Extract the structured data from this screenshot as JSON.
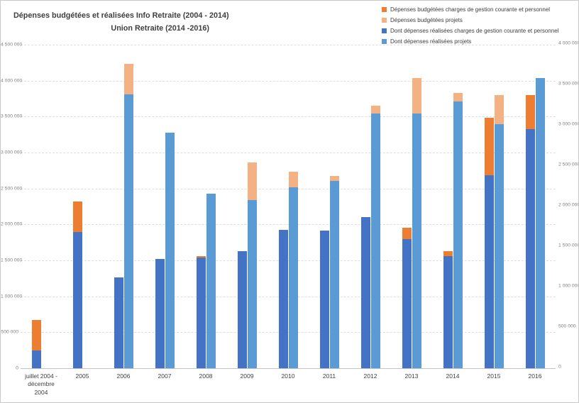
{
  "title": {
    "line1": "Dépenses budgétées et réalisées Info Retraite  (2004 - 2014)",
    "line2": "Union Retraite  (2014 -2016)"
  },
  "legend": {
    "position": "top-right",
    "items": [
      {
        "label": "Dépenses budgétées charges de gestion courante et personnel",
        "color": "#ED7D31"
      },
      {
        "label": "Dépenses budgétées  projets",
        "color": "#F4B183"
      },
      {
        "label": "Dont dépenses réalisées charges de gestion courante et personnel",
        "color": "#4472C4"
      },
      {
        "label": "Dont dépenses réalisées projets",
        "color": "#5B9BD5"
      }
    ]
  },
  "chart_data": {
    "type": "bar",
    "title": "Dépenses budgétées et réalisées Info Retraite (2004 - 2014) Union Retraite (2014 -2016)",
    "grid": "horizontal-dashed",
    "legend_position": "top-right",
    "dual_axis": true,
    "categories": [
      "juillet 2004 -\ndécembre 2004",
      "2005",
      "2006",
      "2007",
      "2008",
      "2009",
      "2010",
      "2011",
      "2012",
      "2013",
      "2014",
      "2015",
      "2016"
    ],
    "series": [
      {
        "name": "Dépenses budgétées charges de gestion courante et personnel",
        "color": "#ED7D31",
        "axis": "primary",
        "column": "charges",
        "layer": "back",
        "values": [
          670000,
          2320000,
          0,
          0,
          1560000,
          0,
          0,
          0,
          0,
          1950000,
          1630000,
          3480000,
          3800000
        ]
      },
      {
        "name": "Dépenses budgétées  projets",
        "color": "#F4B183",
        "axis": "primary",
        "column": "projets",
        "layer": "back",
        "values": [
          0,
          0,
          4230000,
          0,
          0,
          2860000,
          2730000,
          2670000,
          3650000,
          4040000,
          3830000,
          3800000,
          0
        ]
      },
      {
        "name": "Dont dépenses réalisées charges de gestion courante et personnel",
        "color": "#4472C4",
        "axis": "secondary",
        "column": "charges",
        "layer": "front",
        "values": [
          220000,
          1680000,
          1120000,
          1350000,
          1370000,
          1450000,
          1710000,
          1700000,
          1870000,
          1600000,
          1390000,
          2390000,
          2960000
        ]
      },
      {
        "name": "Dont dépenses réalisées projets",
        "color": "#5B9BD5",
        "axis": "secondary",
        "column": "projets",
        "layer": "front",
        "values": [
          0,
          0,
          3390000,
          2910000,
          2160000,
          2080000,
          2240000,
          2320000,
          3150000,
          3150000,
          3300000,
          3020000,
          3590000
        ]
      }
    ],
    "primary_axis": {
      "side": "left",
      "min": 0,
      "max": 4500000,
      "tick_labels": [
        "4 500 000",
        "4 000 000",
        "3 500 000",
        "3 000 000",
        "2 500 000",
        "2 000 000",
        "1 500 000",
        "1 000 000",
        "500 000",
        "0"
      ]
    },
    "secondary_axis": {
      "side": "right",
      "min": 0,
      "max": 4000000,
      "tick_labels": [
        "4 000 000",
        "3 500 000",
        "3 000 000",
        "2 500 000",
        "2 000 000",
        "1 500 000",
        "1 000 000",
        "500 000",
        "0"
      ]
    }
  }
}
